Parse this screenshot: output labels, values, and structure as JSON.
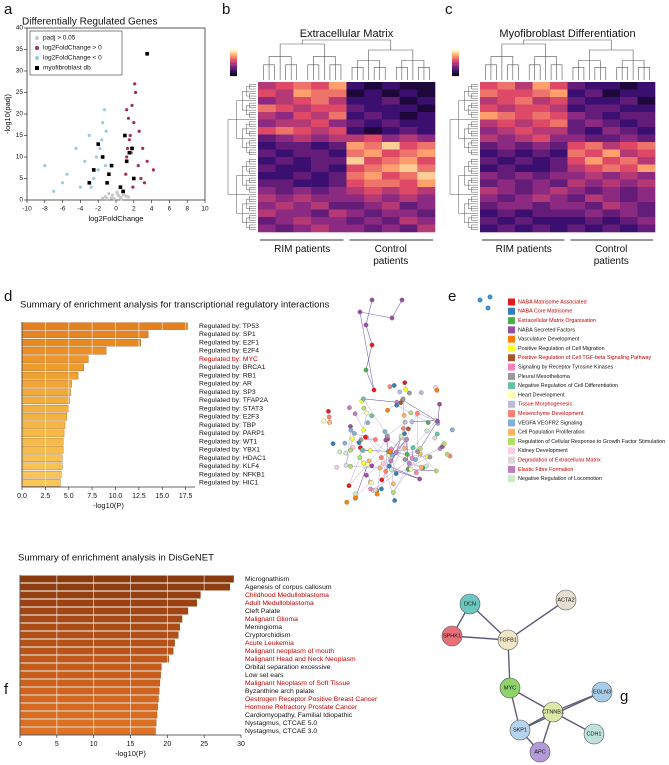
{
  "panel_labels": [
    "a",
    "b",
    "c",
    "d",
    "e",
    "f",
    "g"
  ],
  "chart_data": [
    {
      "type": "scatter",
      "title": "Differentially Regulated Genes",
      "x_label": "log2FoldChange",
      "y_label": "-log10(padj)",
      "xlim": [
        -10,
        10
      ],
      "xticks": [
        -10,
        -8,
        -6,
        -4,
        -2,
        0,
        2,
        4,
        6,
        8,
        10
      ],
      "ylim": [
        0,
        40
      ],
      "yticks": [
        0,
        5,
        10,
        15,
        20,
        25,
        30,
        35,
        40
      ],
      "legend": "upper left",
      "series": [
        {
          "name": "padj > 0.05",
          "color": "#c8c8c8",
          "marker": "circle",
          "x": [
            -0.5,
            0.3,
            -1.2,
            0.8,
            -0.2,
            0.5,
            -0.8,
            1.1,
            -1.5,
            0.1,
            0.6,
            -0.4,
            1.4,
            -1.0,
            0.2
          ],
          "values": [
            0.5,
            1,
            0.8,
            1.2,
            0.3,
            0.6,
            1.5,
            0.9,
            0.4,
            1.8,
            0.2,
            1.1,
            0.7,
            0.3,
            1.4
          ]
        },
        {
          "name": "log2FoldChange > 0",
          "color": "#a3304f",
          "marker": "circle",
          "x": [
            1.2,
            1.5,
            2.0,
            2.5,
            1.8,
            3.0,
            1.1,
            2.2,
            1.6,
            2.8,
            3.5,
            1.4,
            2.1,
            1.9,
            4.2,
            1.3,
            2.6,
            1.7,
            1.2,
            3.2
          ],
          "values": [
            10,
            14,
            18,
            8,
            22,
            12,
            6,
            25,
            15,
            5,
            9,
            19,
            27,
            3,
            7,
            12,
            16,
            11,
            21,
            4
          ]
        },
        {
          "name": "log2FoldChange < 0",
          "color": "#9ecae1",
          "marker": "circle",
          "x": [
            -1.2,
            -1.8,
            -2.5,
            -3.0,
            -1.5,
            -4.0,
            -5.5,
            -2.2,
            -1.3,
            -3.5,
            -6.0,
            -8.0,
            -2.8,
            -1.6,
            -7.0,
            -4.5,
            -1.1,
            -2.0
          ],
          "values": [
            8,
            12,
            5,
            15,
            18,
            3,
            6,
            10,
            21,
            9,
            4,
            8,
            3,
            14,
            2,
            12,
            16,
            7
          ]
        },
        {
          "name": "myofibroblast db",
          "color": "#000000",
          "marker": "square",
          "x": [
            -1.5,
            -2.0,
            -0.8,
            1.2,
            1.5,
            0.5,
            -1.0,
            2.0,
            3.5,
            1.0,
            -2.5,
            0.8,
            -0.5,
            1.8,
            -3.0
          ],
          "values": [
            10,
            13,
            6,
            9,
            11,
            3,
            4,
            5,
            34,
            15,
            7,
            2,
            8,
            12,
            4
          ]
        }
      ]
    },
    {
      "type": "heatmap",
      "title": "Extracellular Matrix",
      "group_labels": [
        "RIM patients",
        "Control patients"
      ],
      "zlim": [
        0,
        10
      ],
      "colormap": [
        "#000004",
        "#3b0f70",
        "#8c2981",
        "#de4968",
        "#fe9f6d",
        "#fcfdbf"
      ],
      "matrix": [
        [
          5,
          6,
          7,
          6,
          8,
          2,
          1,
          2,
          1,
          1
        ],
        [
          6,
          5,
          8,
          7,
          7,
          1,
          2,
          1,
          2,
          1
        ],
        [
          4,
          5,
          6,
          7,
          5,
          2,
          2,
          3,
          1,
          2
        ],
        [
          7,
          6,
          5,
          6,
          6,
          3,
          2,
          2,
          2,
          1
        ],
        [
          5,
          4,
          6,
          5,
          7,
          2,
          3,
          2,
          1,
          2
        ],
        [
          4,
          5,
          5,
          6,
          4,
          3,
          2,
          3,
          2,
          2
        ],
        [
          6,
          7,
          6,
          5,
          6,
          2,
          1,
          2,
          3,
          2
        ],
        [
          3,
          4,
          5,
          4,
          5,
          5,
          6,
          4,
          5,
          4
        ],
        [
          2,
          3,
          3,
          2,
          3,
          8,
          7,
          9,
          6,
          7
        ],
        [
          3,
          2,
          3,
          3,
          2,
          7,
          8,
          6,
          7,
          8
        ],
        [
          2,
          3,
          2,
          3,
          3,
          9,
          6,
          7,
          8,
          6
        ],
        [
          3,
          2,
          2,
          3,
          2,
          6,
          7,
          8,
          9,
          7
        ],
        [
          2,
          2,
          3,
          2,
          3,
          7,
          8,
          6,
          7,
          9
        ],
        [
          3,
          3,
          2,
          2,
          3,
          6,
          7,
          7,
          6,
          8
        ],
        [
          4,
          3,
          4,
          3,
          4,
          5,
          6,
          5,
          6,
          5
        ],
        [
          5,
          4,
          5,
          4,
          4,
          4,
          5,
          4,
          5,
          4
        ],
        [
          4,
          5,
          4,
          5,
          3,
          3,
          4,
          5,
          3,
          4
        ],
        [
          5,
          4,
          4,
          3,
          5,
          4,
          3,
          4,
          4,
          3
        ],
        [
          3,
          4,
          5,
          4,
          4,
          3,
          4,
          3,
          5,
          4
        ],
        [
          4,
          3,
          4,
          5,
          4,
          4,
          3,
          4,
          3,
          5
        ]
      ]
    },
    {
      "type": "heatmap",
      "title": "Myofibroblast Differentiation",
      "group_labels": [
        "RIM patients",
        "Control patients"
      ],
      "zlim": [
        0,
        10
      ],
      "colormap": [
        "#000004",
        "#3b0f70",
        "#8c2981",
        "#de4968",
        "#fe9f6d",
        "#fcfdbf"
      ],
      "matrix": [
        [
          6,
          7,
          5,
          8,
          6,
          3,
          2,
          2,
          1,
          2
        ],
        [
          7,
          6,
          6,
          7,
          8,
          2,
          3,
          1,
          2,
          2
        ],
        [
          5,
          6,
          7,
          5,
          6,
          3,
          2,
          2,
          3,
          1
        ],
        [
          6,
          5,
          6,
          6,
          5,
          2,
          3,
          3,
          2,
          2
        ],
        [
          8,
          7,
          6,
          7,
          6,
          4,
          3,
          2,
          3,
          3
        ],
        [
          5,
          6,
          5,
          6,
          7,
          3,
          4,
          3,
          2,
          3
        ],
        [
          4,
          5,
          6,
          5,
          5,
          3,
          2,
          4,
          3,
          2
        ],
        [
          5,
          4,
          5,
          6,
          4,
          4,
          3,
          3,
          4,
          3
        ],
        [
          3,
          4,
          3,
          4,
          3,
          6,
          7,
          5,
          6,
          7
        ],
        [
          2,
          3,
          2,
          3,
          2,
          7,
          6,
          8,
          5,
          6
        ],
        [
          3,
          2,
          3,
          2,
          3,
          6,
          8,
          6,
          7,
          5
        ],
        [
          2,
          3,
          2,
          2,
          3,
          5,
          6,
          7,
          6,
          8
        ],
        [
          4,
          3,
          4,
          3,
          4,
          4,
          5,
          4,
          5,
          4
        ],
        [
          3,
          4,
          3,
          4,
          3,
          5,
          4,
          5,
          4,
          5
        ],
        [
          5,
          4,
          3,
          4,
          5,
          4,
          3,
          4,
          3,
          4
        ],
        [
          4,
          3,
          4,
          5,
          4,
          3,
          5,
          4,
          3,
          4
        ],
        [
          3,
          4,
          4,
          3,
          4,
          4,
          3,
          5,
          4,
          3
        ],
        [
          2,
          3,
          2,
          3,
          3,
          3,
          4,
          3,
          4,
          3
        ],
        [
          3,
          2,
          3,
          2,
          2,
          2,
          3,
          2,
          3,
          4
        ],
        [
          2,
          3,
          2,
          3,
          2,
          3,
          2,
          3,
          2,
          3
        ]
      ]
    },
    {
      "type": "barh",
      "title": "Summary of enrichment analysis for transcriptional regulatory interactions",
      "x_label": "-log10(P)",
      "grid": true,
      "categories": [
        "Regulated by: TP53",
        "Regulated by: SP1",
        "Regulated by: E2F1",
        "Regulated by: E2F4",
        "Regulated by: MYC",
        "Regulated by: BRCA1",
        "Regulated by: RB1",
        "Regulated by: AR",
        "Regulated by: SP3",
        "Regulated by: TFAP2A",
        "Regulated by: STAT3",
        "Regulated by: E2F3",
        "Regulated by: TBP",
        "Regulated by: PARP1",
        "Regulated by: WT1",
        "Regulated by: YBX1",
        "Regulated by: HDAC1",
        "Regulated by: KLF4",
        "Regulated by: NFKB1",
        "Regulated by: HIC1"
      ],
      "values": [
        17.7,
        13.5,
        12.7,
        9.0,
        7.1,
        6.6,
        6.0,
        5.3,
        5.2,
        5.1,
        5.0,
        4.8,
        4.6,
        4.5,
        4.4,
        4.4,
        4.3,
        4.3,
        4.2,
        4.1
      ],
      "colors": [
        "#e5801f",
        "#e6841f",
        "#e88a22",
        "#ea9025",
        "#ec9629",
        "#ee9c2d",
        "#efa131",
        "#f0a535",
        "#f1a938",
        "#f2ad3b",
        "#f3b03e",
        "#f4b341",
        "#f5b644",
        "#f6b947",
        "#f6bb4a",
        "#f7bd4c",
        "#f8c04f",
        "#f8c252",
        "#f9c455",
        "#f9c657"
      ],
      "label_colors": [
        "#111",
        "#111",
        "#111",
        "#111",
        "#c00000",
        "#111",
        "#111",
        "#111",
        "#111",
        "#111",
        "#111",
        "#111",
        "#111",
        "#111",
        "#111",
        "#111",
        "#111",
        "#111",
        "#111",
        "#111"
      ],
      "xlim": [
        0,
        18.5
      ],
      "xticks": [
        {
          "value": 0,
          "label": "0.0"
        },
        2.5,
        {
          "value": 5,
          "label": "5.0"
        },
        7.5,
        {
          "value": 10,
          "label": "10.0"
        },
        12.5,
        {
          "value": 15,
          "label": "15.0"
        },
        17.5
      ]
    },
    {
      "type": "barh",
      "title": "Summary of enrichment analysis in DisGeNET",
      "x_label": "-log10(P)",
      "grid": true,
      "categories": [
        "Micrognathism",
        "Agenesis of corpus callosum",
        "Childhood Medulloblastoma",
        "Adult Medulloblastoma",
        "Cleft Palate",
        "Malignant Glioma",
        "Meningioma",
        "Cryptorchidism",
        "Acute Leukemia",
        "Malignant neoplasm of mouth",
        "Malignant Head and Neck Neoplasm",
        "Orbital separation excessive",
        "Low set ears",
        "Malignant Neoplasm of Soft Tissue",
        "Byzanthine arch palate",
        "Oestrogen Receptor Positive Breast Cancer",
        "Hormone Refractory Prostate Cancer",
        "Cardiomyopathy, Familial Idiopathic",
        "Nystagmus, CTCAE 5.0",
        "Nystagmus, CTCAE 3.0"
      ],
      "values": [
        29.0,
        28.5,
        24.5,
        24.0,
        22.8,
        22.0,
        21.7,
        21.5,
        21.0,
        20.8,
        20.2,
        19.2,
        19.1,
        19.0,
        18.9,
        18.8,
        18.7,
        18.6,
        18.5,
        18.4
      ],
      "colors": [
        "#8b3a0f",
        "#8e3c10",
        "#973f11",
        "#9c4212",
        "#a24513",
        "#a84814",
        "#ad4b15",
        "#b24e16",
        "#b75117",
        "#bc5418",
        "#c15719",
        "#c65a1a",
        "#cb5d1b",
        "#ce601c",
        "#d1631d",
        "#d4661e",
        "#d7691f",
        "#da6c20",
        "#dd6f21",
        "#e07222"
      ],
      "label_colors": [
        "#111",
        "#111",
        "#c00000",
        "#c00000",
        "#111",
        "#c00000",
        "#111",
        "#111",
        "#c00000",
        "#c00000",
        "#c00000",
        "#111",
        "#111",
        "#c00000",
        "#111",
        "#c00000",
        "#c00000",
        "#111",
        "#111",
        "#111"
      ],
      "xlim": [
        0,
        30
      ],
      "xticks": [
        0,
        5,
        10,
        15,
        20,
        25,
        30
      ]
    }
  ],
  "network_e": {
    "legend": [
      {
        "label": "NABA Matrisome Associated",
        "color": "#e41a1c",
        "highlight": true
      },
      {
        "label": "NABA Core Matrisome",
        "color": "#377eb8",
        "highlight": true
      },
      {
        "label": "Extracellular Matrix Organisation",
        "color": "#4daf4a",
        "highlight": true
      },
      {
        "label": "NABA Secreted Factors",
        "color": "#984ea3",
        "highlight": false
      },
      {
        "label": "Vasculature Development",
        "color": "#ff7f00",
        "highlight": false
      },
      {
        "label": "Positive Regulation of Cell Migration",
        "color": "#ffff33",
        "highlight": false
      },
      {
        "label": "Positive Regulation of Cell TGF-beta Signaling Pathway",
        "color": "#a65628",
        "highlight": true
      },
      {
        "label": "Signaling by Receptor Tyrosine Kinases",
        "color": "#f781bf",
        "highlight": false
      },
      {
        "label": "Pleural Mesothelioma",
        "color": "#999999",
        "highlight": false
      },
      {
        "label": "Negative Regulation of Cell Differentiation",
        "color": "#66c2a5",
        "highlight": false
      },
      {
        "label": "Heart Development",
        "color": "#ffffb3",
        "highlight": false
      },
      {
        "label": "Tissue Morphogenesis",
        "color": "#bebada",
        "highlight": true
      },
      {
        "label": "Mesenchyme Development",
        "color": "#fb8072",
        "highlight": true
      },
      {
        "label": "VEGFA VEGFR2 Signaling",
        "color": "#80b1d3",
        "highlight": false
      },
      {
        "label": "Cell Population Proliferation",
        "color": "#fdb462",
        "highlight": false
      },
      {
        "label": "Regulation of Cellular Response to Growth Factor Stimulation",
        "color": "#b3de69",
        "highlight": false
      },
      {
        "label": "Kidney Development",
        "color": "#fccde5",
        "highlight": false
      },
      {
        "label": "Degradation of Extracellular Matrix",
        "color": "#d9d9d9",
        "highlight": true
      },
      {
        "label": "Elastic Fibre Formation",
        "color": "#bc80bd",
        "highlight": true
      },
      {
        "label": "Negative Regulation of Locomotion",
        "color": "#ccebc5",
        "highlight": false
      }
    ]
  },
  "network_g": {
    "nodes": [
      {
        "label": "DCN"
      },
      {
        "label": "ACTA2"
      },
      {
        "label": "SPHK1"
      },
      {
        "label": "TGFB1"
      },
      {
        "label": "MYC"
      },
      {
        "label": "EGLN3"
      },
      {
        "label": "CTNNB1"
      },
      {
        "label": "SKP1"
      },
      {
        "label": "CDH1"
      },
      {
        "label": "APC"
      }
    ]
  }
}
